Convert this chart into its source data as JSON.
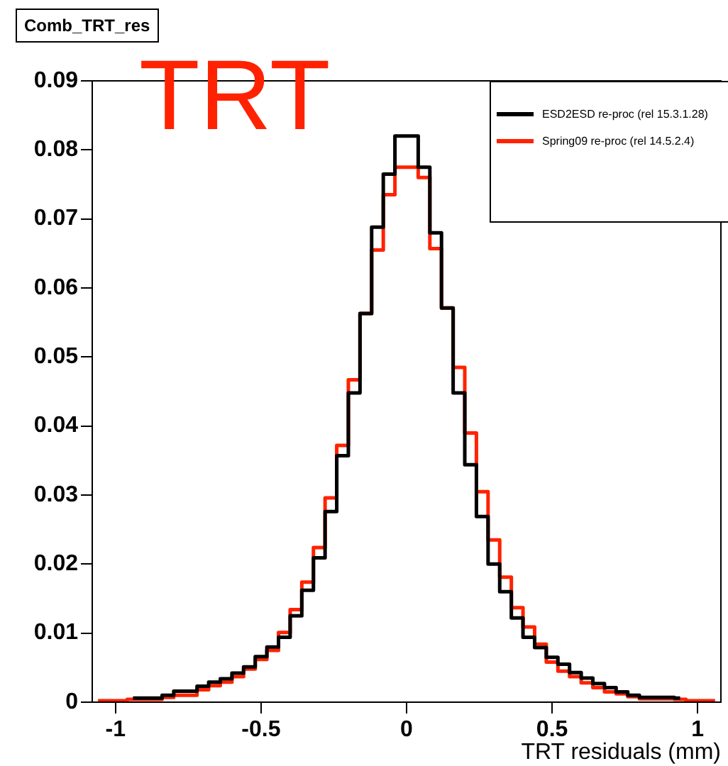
{
  "chart_data": {
    "type": "step",
    "title": "Comb_TRT_res",
    "xlabel": "TRT residuals (mm)",
    "annotations": [
      "TRT"
    ],
    "x": [
      -1.06,
      -1.02,
      -0.98,
      -0.94,
      -0.9,
      -0.86,
      -0.82,
      -0.78,
      -0.74,
      -0.7,
      -0.66,
      -0.62,
      -0.58,
      -0.54,
      -0.5,
      -0.46,
      -0.42,
      -0.38,
      -0.34,
      -0.3,
      -0.26,
      -0.22,
      -0.18,
      -0.14,
      -0.1,
      -0.06,
      -0.02,
      0.02,
      0.06,
      0.1,
      0.14,
      0.18,
      0.22,
      0.26,
      0.3,
      0.34,
      0.38,
      0.42,
      0.46,
      0.5,
      0.54,
      0.58,
      0.62,
      0.66,
      0.7,
      0.74,
      0.78,
      0.82,
      0.86,
      0.9,
      0.94,
      0.98,
      1.02,
      1.06
    ],
    "series": [
      {
        "name": "ESD2ESD re-proc (rel 15.3.1.28)",
        "color": "#000000",
        "values": [
          null,
          null,
          null,
          0.0006,
          0.0006,
          0.0006,
          0.001,
          0.0016,
          0.0016,
          0.0023,
          0.0029,
          0.0034,
          0.0042,
          0.0051,
          0.0066,
          0.008,
          0.0094,
          0.0125,
          0.0162,
          0.0209,
          0.0276,
          0.0357,
          0.0448,
          0.0563,
          0.0688,
          0.0765,
          0.082,
          0.082,
          0.0775,
          0.068,
          0.0571,
          0.0448,
          0.0344,
          0.0269,
          0.02,
          0.016,
          0.0122,
          0.0094,
          0.0079,
          0.0065,
          0.0055,
          0.0043,
          0.0035,
          0.0027,
          0.0021,
          0.0015,
          0.001,
          0.0007,
          0.0007,
          0.0007,
          0.0006,
          null,
          null,
          null
        ]
      },
      {
        "name": "Spring09 re-proc (rel 14.5.2.4)",
        "color": "#ff2200",
        "values": [
          0.0002,
          0.0002,
          0.0002,
          0.0004,
          0.0004,
          0.0004,
          0.0007,
          0.001,
          0.001,
          0.0018,
          0.0024,
          0.0029,
          0.0037,
          0.0048,
          0.0062,
          0.0075,
          0.0101,
          0.0134,
          0.0174,
          0.0224,
          0.0296,
          0.0372,
          0.0467,
          0.0563,
          0.0655,
          0.0735,
          0.0775,
          0.0775,
          0.076,
          0.0657,
          0.0571,
          0.0485,
          0.039,
          0.0305,
          0.0235,
          0.0181,
          0.0137,
          0.0109,
          0.0084,
          0.0058,
          0.0045,
          0.0037,
          0.0028,
          0.0021,
          0.0015,
          0.0012,
          0.0008,
          0.0005,
          0.0005,
          0.0005,
          0.0004,
          0.0002,
          0.0002,
          0.0002
        ]
      }
    ],
    "xlim": [
      -1.08,
      1.08
    ],
    "xticks": [
      -1,
      -0.5,
      0,
      0.5,
      1
    ],
    "ylim": [
      0,
      0.09
    ],
    "yticks": [
      0,
      0.01,
      0.02,
      0.03,
      0.04,
      0.05,
      0.06,
      0.07,
      0.08,
      0.09
    ],
    "legend": "top right"
  }
}
